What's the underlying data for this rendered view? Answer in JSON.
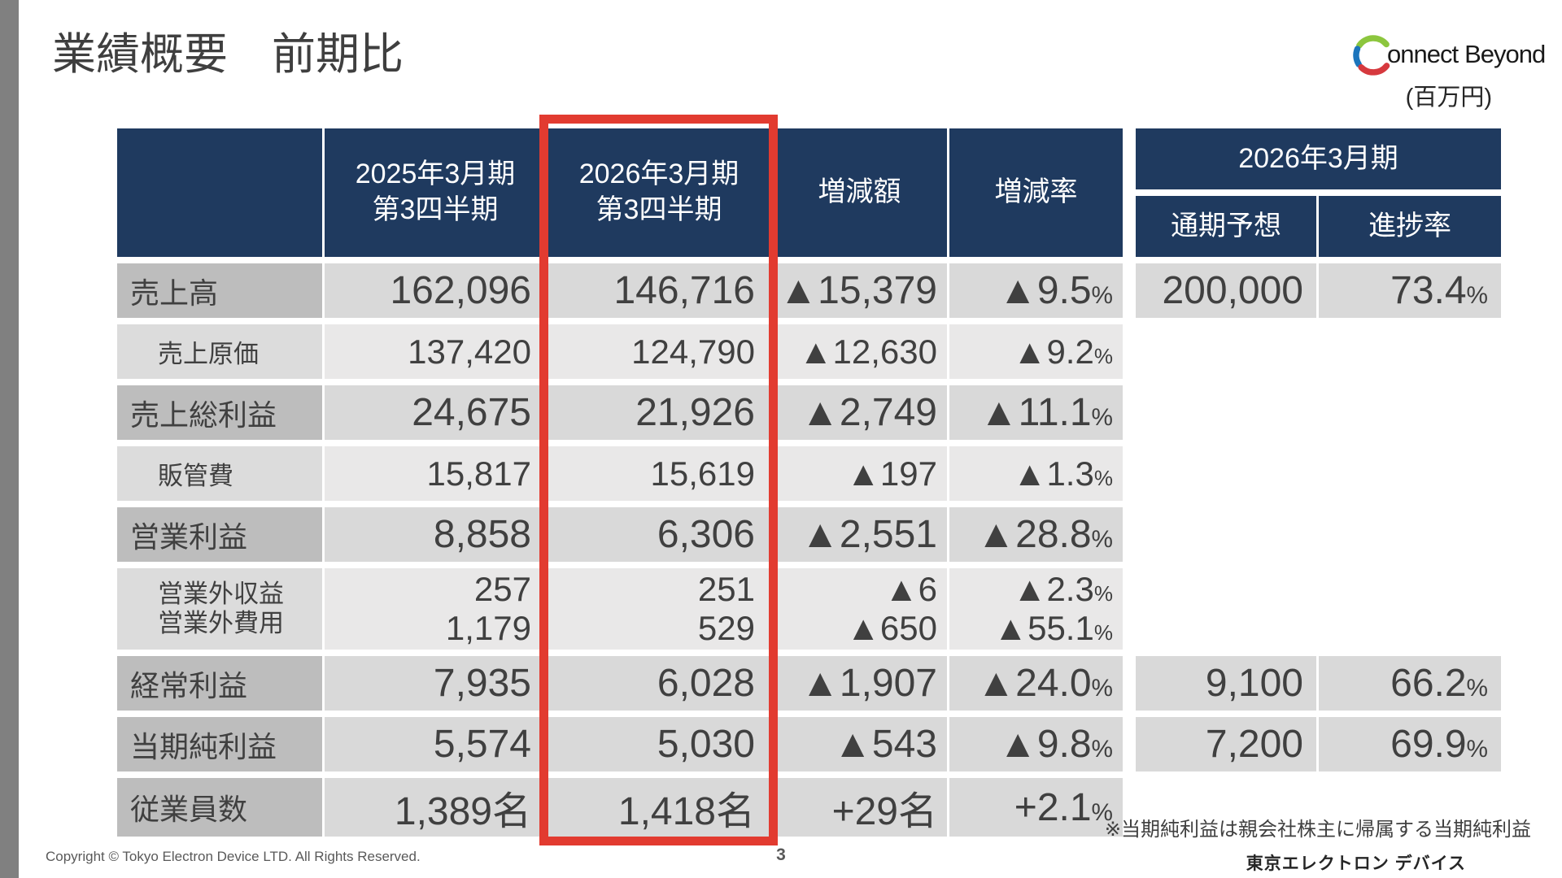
{
  "colors": {
    "navy": "#1f3a5f",
    "highlight-red": "#e23b30",
    "logo-green": "#8cc63e",
    "logo-blue": "#1c75bc",
    "logo-red": "#d6393e"
  },
  "header": {
    "title": "業績概要　前期比",
    "unit_label": "(百万円)",
    "logo": {
      "connect": "onnect",
      "beyond": "Beyond"
    }
  },
  "table": {
    "columns": {
      "prev_period": "2025年3月期\n第3四半期",
      "curr_period": "2026年3月期\n第3四半期",
      "diff_amount": "増減額",
      "diff_rate": "増減率",
      "fy2026_group": "2026年3月期",
      "full_year_forecast": "通期予想",
      "progress_rate": "進捗率"
    },
    "rows": [
      {
        "type": "main",
        "label": "売上高",
        "prev": "162,096",
        "curr": "146,716",
        "diff": "▲15,379",
        "rate": "▲9.5%",
        "forecast": "200,000",
        "progress": "73.4%"
      },
      {
        "type": "sub",
        "label": "売上原価",
        "prev": "137,420",
        "curr": "124,790",
        "diff": "▲12,630",
        "rate": "▲9.2%",
        "forecast": "",
        "progress": ""
      },
      {
        "type": "main",
        "label": "売上総利益",
        "prev": "24,675",
        "curr": "21,926",
        "diff": "▲2,749",
        "rate": "▲11.1%",
        "forecast": "",
        "progress": ""
      },
      {
        "type": "sub",
        "label": "販管費",
        "prev": "15,817",
        "curr": "15,619",
        "diff": "▲197",
        "rate": "▲1.3%",
        "forecast": "",
        "progress": ""
      },
      {
        "type": "main",
        "label": "営業利益",
        "prev": "8,858",
        "curr": "6,306",
        "diff": "▲2,551",
        "rate": "▲28.8%",
        "forecast": "",
        "progress": ""
      },
      {
        "type": "sub",
        "tall": true,
        "label": "営業外収益\n営業外費用",
        "prev": "257\n1,179",
        "curr": "251\n529",
        "diff": "▲6\n▲650",
        "rate": "▲2.3%\n▲55.1%",
        "forecast": "",
        "progress": ""
      },
      {
        "type": "main",
        "label": "経常利益",
        "prev": "7,935",
        "curr": "6,028",
        "diff": "▲1,907",
        "rate": "▲24.0%",
        "forecast": "9,100",
        "progress": "66.2%"
      },
      {
        "type": "main",
        "label": "当期純利益",
        "prev": "5,574",
        "curr": "5,030",
        "diff": "▲543",
        "rate": "▲9.8%",
        "forecast": "7,200",
        "progress": "69.9%"
      },
      {
        "type": "main",
        "label": "従業員数",
        "prev": "1,389名",
        "curr": "1,418名",
        "diff": "+29名",
        "rate": "+2.1%",
        "forecast": "",
        "progress": ""
      }
    ]
  },
  "footnote": "※当期純利益は親会社株主に帰属する当期純利益",
  "footer": {
    "copyright": "Copyright © Tokyo Electron Device LTD. All Rights Reserved.",
    "page_number": "3",
    "company": "東京エレクトロン デバイス"
  }
}
